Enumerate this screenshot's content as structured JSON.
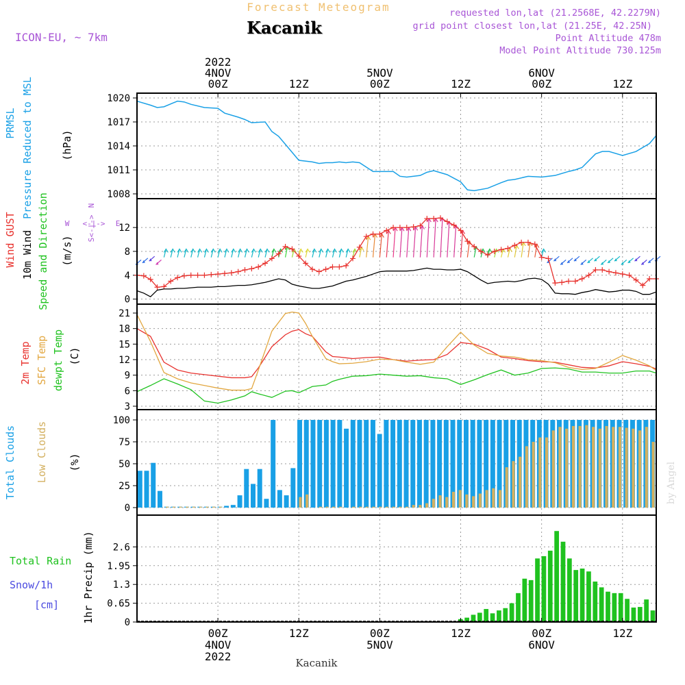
{
  "header": {
    "title": "Kacanik",
    "subtitle": "Forecast Meteogram",
    "model": "ICON-EU, ~ 7km",
    "requested": "requested lon,lat (21.2568E, 42.2279N)",
    "closest": "grid point closest lon,lat (21.25E, 42.25N)",
    "point_alt": "Point Altitude 478m",
    "model_alt": "Model Point Altitude 730.125m",
    "footer": "Kacanik",
    "watermark": "by Angel"
  },
  "time_axis": {
    "top_labels": [
      {
        "id": "0",
        "lines": [
          "2022",
          "4NOV",
          "00Z"
        ],
        "hour": 12
      },
      {
        "id": "1",
        "lines": [
          "12Z"
        ],
        "hour": 24
      },
      {
        "id": "2",
        "lines": [
          "5NOV",
          "00Z"
        ],
        "hour": 36
      },
      {
        "id": "3",
        "lines": [
          "12Z"
        ],
        "hour": 48
      },
      {
        "id": "4",
        "lines": [
          "6NOV",
          "00Z"
        ],
        "hour": 60
      },
      {
        "id": "5",
        "lines": [
          "12Z"
        ],
        "hour": 72
      }
    ],
    "bottom_labels": [
      {
        "id": "0",
        "lines": [
          "00Z",
          "4NOV",
          "2022"
        ],
        "hour": 12
      },
      {
        "id": "1",
        "lines": [
          "12Z"
        ],
        "hour": 24
      },
      {
        "id": "2",
        "lines": [
          "00Z",
          "5NOV"
        ],
        "hour": 36
      },
      {
        "id": "3",
        "lines": [
          "12Z"
        ],
        "hour": 48
      },
      {
        "id": "4",
        "lines": [
          "00Z",
          "6NOV"
        ],
        "hour": 60
      },
      {
        "id": "5",
        "lines": [
          "12Z"
        ],
        "hour": 72
      }
    ]
  },
  "panel_labels": {
    "pressure": [
      {
        "text": "PRMSL",
        "color": "#19a0e6"
      },
      {
        "text": "Pressure Reduced to MSL",
        "color": "#19a0e6"
      },
      {
        "text": "(hPa)",
        "color": "#000000"
      }
    ],
    "wind": [
      {
        "text": "Wind GUST",
        "color": "#e8322e"
      },
      {
        "text": "10m Wind",
        "color": "#000000"
      },
      {
        "text": "Speed and Direction",
        "color": "#1fc21f"
      },
      {
        "text": "(m/s)",
        "color": "#000000"
      }
    ],
    "compass": {
      "n": "N",
      "s": "S",
      "w": "W",
      "e": "E",
      "arrow": "<-|->"
    },
    "temp": [
      {
        "text": "2m Temp",
        "color": "#e8322e"
      },
      {
        "text": "SFC Temp",
        "color": "#e2a740"
      },
      {
        "text": "dewpt Temp",
        "color": "#1fc21f"
      },
      {
        "text": "(C)",
        "color": "#000000"
      }
    ],
    "clouds": [
      {
        "text": "Total Clouds",
        "color": "#19a0e6"
      },
      {
        "text": "Low Clouds",
        "color": "#d3b060"
      },
      {
        "text": "(%)",
        "color": "#000000"
      }
    ],
    "precip_left": [
      {
        "text": "Total  Rain",
        "color": "#1fc21f"
      },
      {
        "text": "Snow/1h",
        "color": "#4a4ae0"
      },
      {
        "text": "[cm]",
        "color": "#4a4ae0"
      }
    ],
    "precip_axis": "1hr Precip (mm)"
  },
  "colors": {
    "pressure": "#19a0e6",
    "gust": "#e8322e",
    "wind": "#000000",
    "t2m": "#e8322e",
    "tsfc": "#e2a740",
    "dewpt": "#1fc21f",
    "total_clouds": "#19a0e6",
    "low_clouds": "#d3b060",
    "rain": "#1fc21f",
    "header_purple": "#a855d6",
    "subtitle": "#f0c070"
  },
  "chart_data": [
    {
      "type": "line",
      "id": "pressure",
      "ylim": [
        1008,
        1020
      ],
      "yticks": [
        "1008",
        "1011",
        "1014",
        "1017",
        "1020"
      ],
      "x_hours": [
        0,
        2,
        3,
        4,
        6,
        7,
        8,
        10,
        12,
        13,
        15,
        16,
        17,
        19,
        20,
        21,
        22,
        24,
        26,
        27,
        28,
        29,
        30,
        31,
        32,
        33,
        35,
        36,
        38,
        39,
        40,
        42,
        43,
        44,
        46,
        48,
        49,
        50,
        52,
        54,
        55,
        56,
        58,
        60,
        62,
        64,
        65,
        66,
        68,
        69,
        70,
        72,
        74,
        76,
        77
      ],
      "series": [
        {
          "name": "PRMSL",
          "values": [
            1019.6,
            1019.1,
            1018.8,
            1018.9,
            1019.6,
            1019.5,
            1019.2,
            1018.8,
            1018.7,
            1018.1,
            1017.6,
            1017.3,
            1016.9,
            1017.0,
            1015.8,
            1015.2,
            1014.2,
            1012.2,
            1012.0,
            1011.8,
            1011.9,
            1011.9,
            1012.0,
            1011.9,
            1012.0,
            1011.9,
            1010.8,
            1010.8,
            1010.8,
            1010.2,
            1010.1,
            1010.3,
            1010.7,
            1010.9,
            1010.4,
            1009.5,
            1008.5,
            1008.4,
            1008.7,
            1009.4,
            1009.7,
            1009.8,
            1010.2,
            1010.1,
            1010.3,
            1010.8,
            1011.0,
            1011.3,
            1013.0,
            1013.3,
            1013.3,
            1012.8,
            1013.3,
            1014.3,
            1015.3
          ]
        }
      ]
    },
    {
      "type": "line",
      "id": "wind",
      "ylim": [
        -0.5,
        15
      ],
      "yticks": [
        "0",
        "4",
        "8",
        "12"
      ],
      "x_hours": [
        0,
        1,
        2,
        3,
        4,
        5,
        6,
        7,
        8,
        9,
        10,
        11,
        12,
        13,
        14,
        15,
        16,
        17,
        18,
        19,
        20,
        21,
        22,
        23,
        24,
        25,
        26,
        27,
        28,
        29,
        30,
        31,
        32,
        33,
        34,
        35,
        36,
        37,
        38,
        39,
        40,
        41,
        42,
        43,
        44,
        45,
        46,
        47,
        48,
        49,
        50,
        51,
        52,
        53,
        54,
        55,
        56,
        57,
        58,
        59,
        60,
        61,
        62,
        63,
        64,
        65,
        66,
        67,
        68,
        69,
        70,
        71,
        72,
        73,
        74,
        75,
        76,
        77
      ],
      "series": [
        {
          "name": "Wind GUST",
          "values": [
            4.0,
            3.9,
            3.3,
            2.0,
            2.1,
            3.0,
            3.6,
            3.9,
            4.0,
            4.0,
            4.0,
            4.1,
            4.2,
            4.3,
            4.4,
            4.6,
            4.9,
            5.1,
            5.4,
            6.0,
            6.8,
            7.6,
            8.8,
            8.4,
            7.2,
            6.0,
            5.0,
            4.6,
            5.0,
            5.4,
            5.4,
            5.6,
            6.8,
            8.7,
            10.5,
            10.9,
            10.9,
            11.5,
            12.0,
            12.0,
            12.0,
            12.1,
            12.3,
            13.5,
            13.5,
            13.6,
            13.0,
            12.4,
            11.5,
            9.7,
            8.8,
            8.0,
            7.4,
            8.0,
            8.3,
            8.5,
            9.0,
            9.5,
            9.5,
            9.2,
            7.0,
            6.8,
            2.7,
            2.8,
            3.0,
            3.0,
            3.4,
            4.0,
            4.9,
            4.9,
            4.6,
            4.4,
            4.2,
            4.0,
            3.2,
            2.3,
            3.4,
            3.4
          ]
        },
        {
          "name": "10m Wind",
          "values": [
            1.4,
            1.0,
            0.4,
            1.5,
            1.7,
            1.7,
            1.8,
            1.8,
            1.9,
            2.0,
            2.0,
            2.0,
            2.1,
            2.1,
            2.2,
            2.3,
            2.3,
            2.4,
            2.6,
            2.8,
            3.1,
            3.4,
            3.2,
            2.5,
            2.2,
            2.0,
            1.8,
            1.8,
            2.0,
            2.2,
            2.6,
            3.0,
            3.2,
            3.5,
            3.8,
            4.2,
            4.6,
            4.7,
            4.7,
            4.7,
            4.7,
            4.8,
            5.0,
            5.2,
            5.0,
            5.0,
            4.9,
            4.9,
            5.0,
            4.6,
            3.9,
            3.2,
            2.6,
            2.8,
            2.9,
            3.0,
            2.9,
            3.1,
            3.4,
            3.5,
            3.3,
            2.5,
            1.0,
            0.9,
            0.9,
            0.8,
            1.1,
            1.3,
            1.6,
            1.4,
            1.2,
            1.3,
            1.5,
            1.5,
            1.3,
            0.8,
            0.8,
            1.2
          ]
        }
      ]
    },
    {
      "type": "line",
      "id": "temp",
      "ylim": [
        3,
        21
      ],
      "yticks": [
        "3",
        "6",
        "9",
        "12",
        "15",
        "18",
        "21"
      ],
      "x_hours": [
        0,
        2,
        4,
        6,
        8,
        10,
        12,
        14,
        16,
        17,
        18,
        20,
        22,
        23,
        24,
        25,
        26,
        28,
        29,
        30,
        32,
        34,
        36,
        38,
        40,
        42,
        44,
        46,
        48,
        50,
        52,
        54,
        56,
        58,
        60,
        62,
        64,
        66,
        68,
        70,
        72,
        74,
        76,
        77
      ],
      "series": [
        {
          "name": "2m Temp",
          "values": [
            18.0,
            16.5,
            11.5,
            10.0,
            9.4,
            9.1,
            8.8,
            8.5,
            8.5,
            8.7,
            10.4,
            14.5,
            16.8,
            17.5,
            17.8,
            17.0,
            16.5,
            13.5,
            12.6,
            12.5,
            12.2,
            12.4,
            12.5,
            12.0,
            11.7,
            11.9,
            12.0,
            13.0,
            15.3,
            15.0,
            14.0,
            12.5,
            12.2,
            11.8,
            11.6,
            11.5,
            11.0,
            10.5,
            10.4,
            10.8,
            11.6,
            11.2,
            10.7,
            10.2
          ]
        },
        {
          "name": "SFC Temp",
          "values": [
            20.7,
            15.5,
            9.5,
            8.3,
            7.5,
            7.0,
            6.5,
            6.1,
            6.1,
            6.4,
            10.0,
            17.5,
            20.9,
            21.2,
            21.0,
            19.0,
            16.5,
            12.2,
            11.6,
            11.2,
            11.3,
            11.6,
            12.1,
            12.0,
            11.5,
            11.1,
            11.5,
            14.5,
            17.3,
            14.8,
            13.2,
            12.7,
            12.5,
            12.0,
            11.8,
            11.4,
            10.5,
            10.1,
            10.3,
            11.5,
            12.8,
            11.9,
            10.8,
            9.9
          ]
        },
        {
          "name": "dewpt Temp",
          "values": [
            5.8,
            7.0,
            8.3,
            7.3,
            6.2,
            4.0,
            3.6,
            4.2,
            5.0,
            5.8,
            5.4,
            4.7,
            5.9,
            6.0,
            5.6,
            6.2,
            6.8,
            7.1,
            7.8,
            8.2,
            8.8,
            8.9,
            9.2,
            9.0,
            8.8,
            8.9,
            8.5,
            8.3,
            7.2,
            8.1,
            9.1,
            10.0,
            9.0,
            9.4,
            10.3,
            10.4,
            10.2,
            9.6,
            9.6,
            9.4,
            9.4,
            9.8,
            9.8,
            9.4
          ]
        }
      ]
    },
    {
      "type": "bar",
      "id": "clouds",
      "ylim": [
        0,
        100
      ],
      "yticks": [
        "0",
        "25",
        "50",
        "75",
        "100"
      ],
      "series": [
        {
          "name": "Total Clouds",
          "values": [
            42,
            42,
            51,
            19,
            1,
            1,
            1,
            1,
            1,
            1,
            1,
            1,
            1,
            2,
            3,
            14,
            44,
            27,
            44,
            10,
            100,
            20,
            14,
            45,
            100,
            100,
            100,
            100,
            100,
            100,
            100,
            90,
            100,
            100,
            100,
            100,
            84,
            100,
            100,
            100,
            100,
            100,
            100,
            100,
            100,
            100,
            100,
            100,
            100,
            100,
            100,
            100,
            100,
            100,
            100,
            100,
            100,
            100,
            100,
            100,
            100,
            100,
            100,
            100,
            100,
            100,
            100,
            100,
            100,
            100,
            100,
            100,
            100,
            100,
            100,
            100,
            100,
            100
          ]
        },
        {
          "name": "Low Clouds",
          "values": [
            0,
            0,
            0,
            0,
            1,
            1,
            1,
            1,
            1,
            1,
            1,
            1,
            1,
            0,
            0,
            0,
            0,
            0,
            0,
            0,
            0,
            0,
            0,
            0,
            12,
            15,
            0,
            1,
            1,
            1,
            1,
            0,
            1,
            1,
            1,
            1,
            1,
            1,
            1,
            1,
            1,
            3,
            3,
            5,
            10,
            14,
            12,
            18,
            20,
            15,
            13,
            16,
            20,
            22,
            20,
            46,
            53,
            58,
            70,
            75,
            80,
            80,
            88,
            92,
            90,
            93,
            93,
            94,
            92,
            90,
            93,
            92,
            92,
            91,
            90,
            88,
            92,
            75
          ]
        }
      ]
    },
    {
      "type": "bar",
      "id": "precip",
      "ylim": [
        0,
        3.25
      ],
      "yticks": [
        "0",
        "0.65",
        "1.3",
        "1.95",
        "2.6"
      ],
      "series": [
        {
          "name": "Total Rain",
          "values": [
            0,
            0,
            0,
            0,
            0,
            0,
            0,
            0,
            0,
            0,
            0,
            0,
            0,
            0,
            0,
            0,
            0,
            0,
            0,
            0,
            0,
            0,
            0,
            0,
            0,
            0,
            0,
            0,
            0,
            0,
            0,
            0,
            0,
            0,
            0,
            0,
            0,
            0,
            0,
            0,
            0,
            0,
            0,
            0,
            0,
            0,
            0,
            0,
            0,
            0,
            0.1,
            0.15,
            0.25,
            0.32,
            0.45,
            0.3,
            0.4,
            0.48,
            0.65,
            1.0,
            1.5,
            1.45,
            2.2,
            2.28,
            2.47,
            3.15,
            2.78,
            2.2,
            1.8,
            1.85,
            1.75,
            1.4,
            1.2,
            1.05,
            1.0,
            1.0,
            0.8,
            0.5,
            0.52,
            0.78,
            0.4
          ]
        }
      ]
    }
  ]
}
